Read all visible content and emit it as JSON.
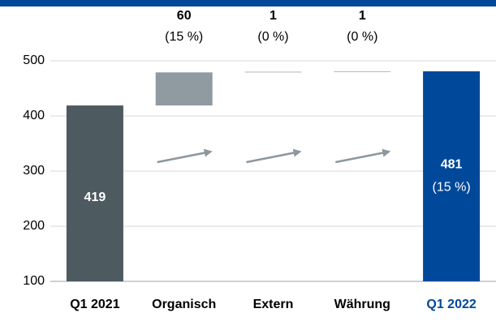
{
  "chart_data": {
    "type": "waterfall",
    "categories": [
      "Q1 2021",
      "Organisch",
      "Extern",
      "Währung",
      "Q1 2022"
    ],
    "values": [
      419,
      60,
      1,
      1,
      481
    ],
    "change_labels": [
      null,
      "(15 %)",
      "(0 %)",
      "(0 %)",
      "(15 %)"
    ],
    "kinds": [
      "total",
      "step",
      "step",
      "step",
      "total"
    ],
    "colors": [
      "#4d5a60",
      "#8f9aa1",
      "#8a9399",
      "#8a9399",
      "#00489a"
    ],
    "label_colors": [
      "#000000",
      "#000000",
      "#000000",
      "#000000",
      "#00489a"
    ],
    "ylim": [
      100,
      500
    ],
    "yticks": [
      100,
      200,
      300,
      400,
      500
    ],
    "grid": true
  }
}
